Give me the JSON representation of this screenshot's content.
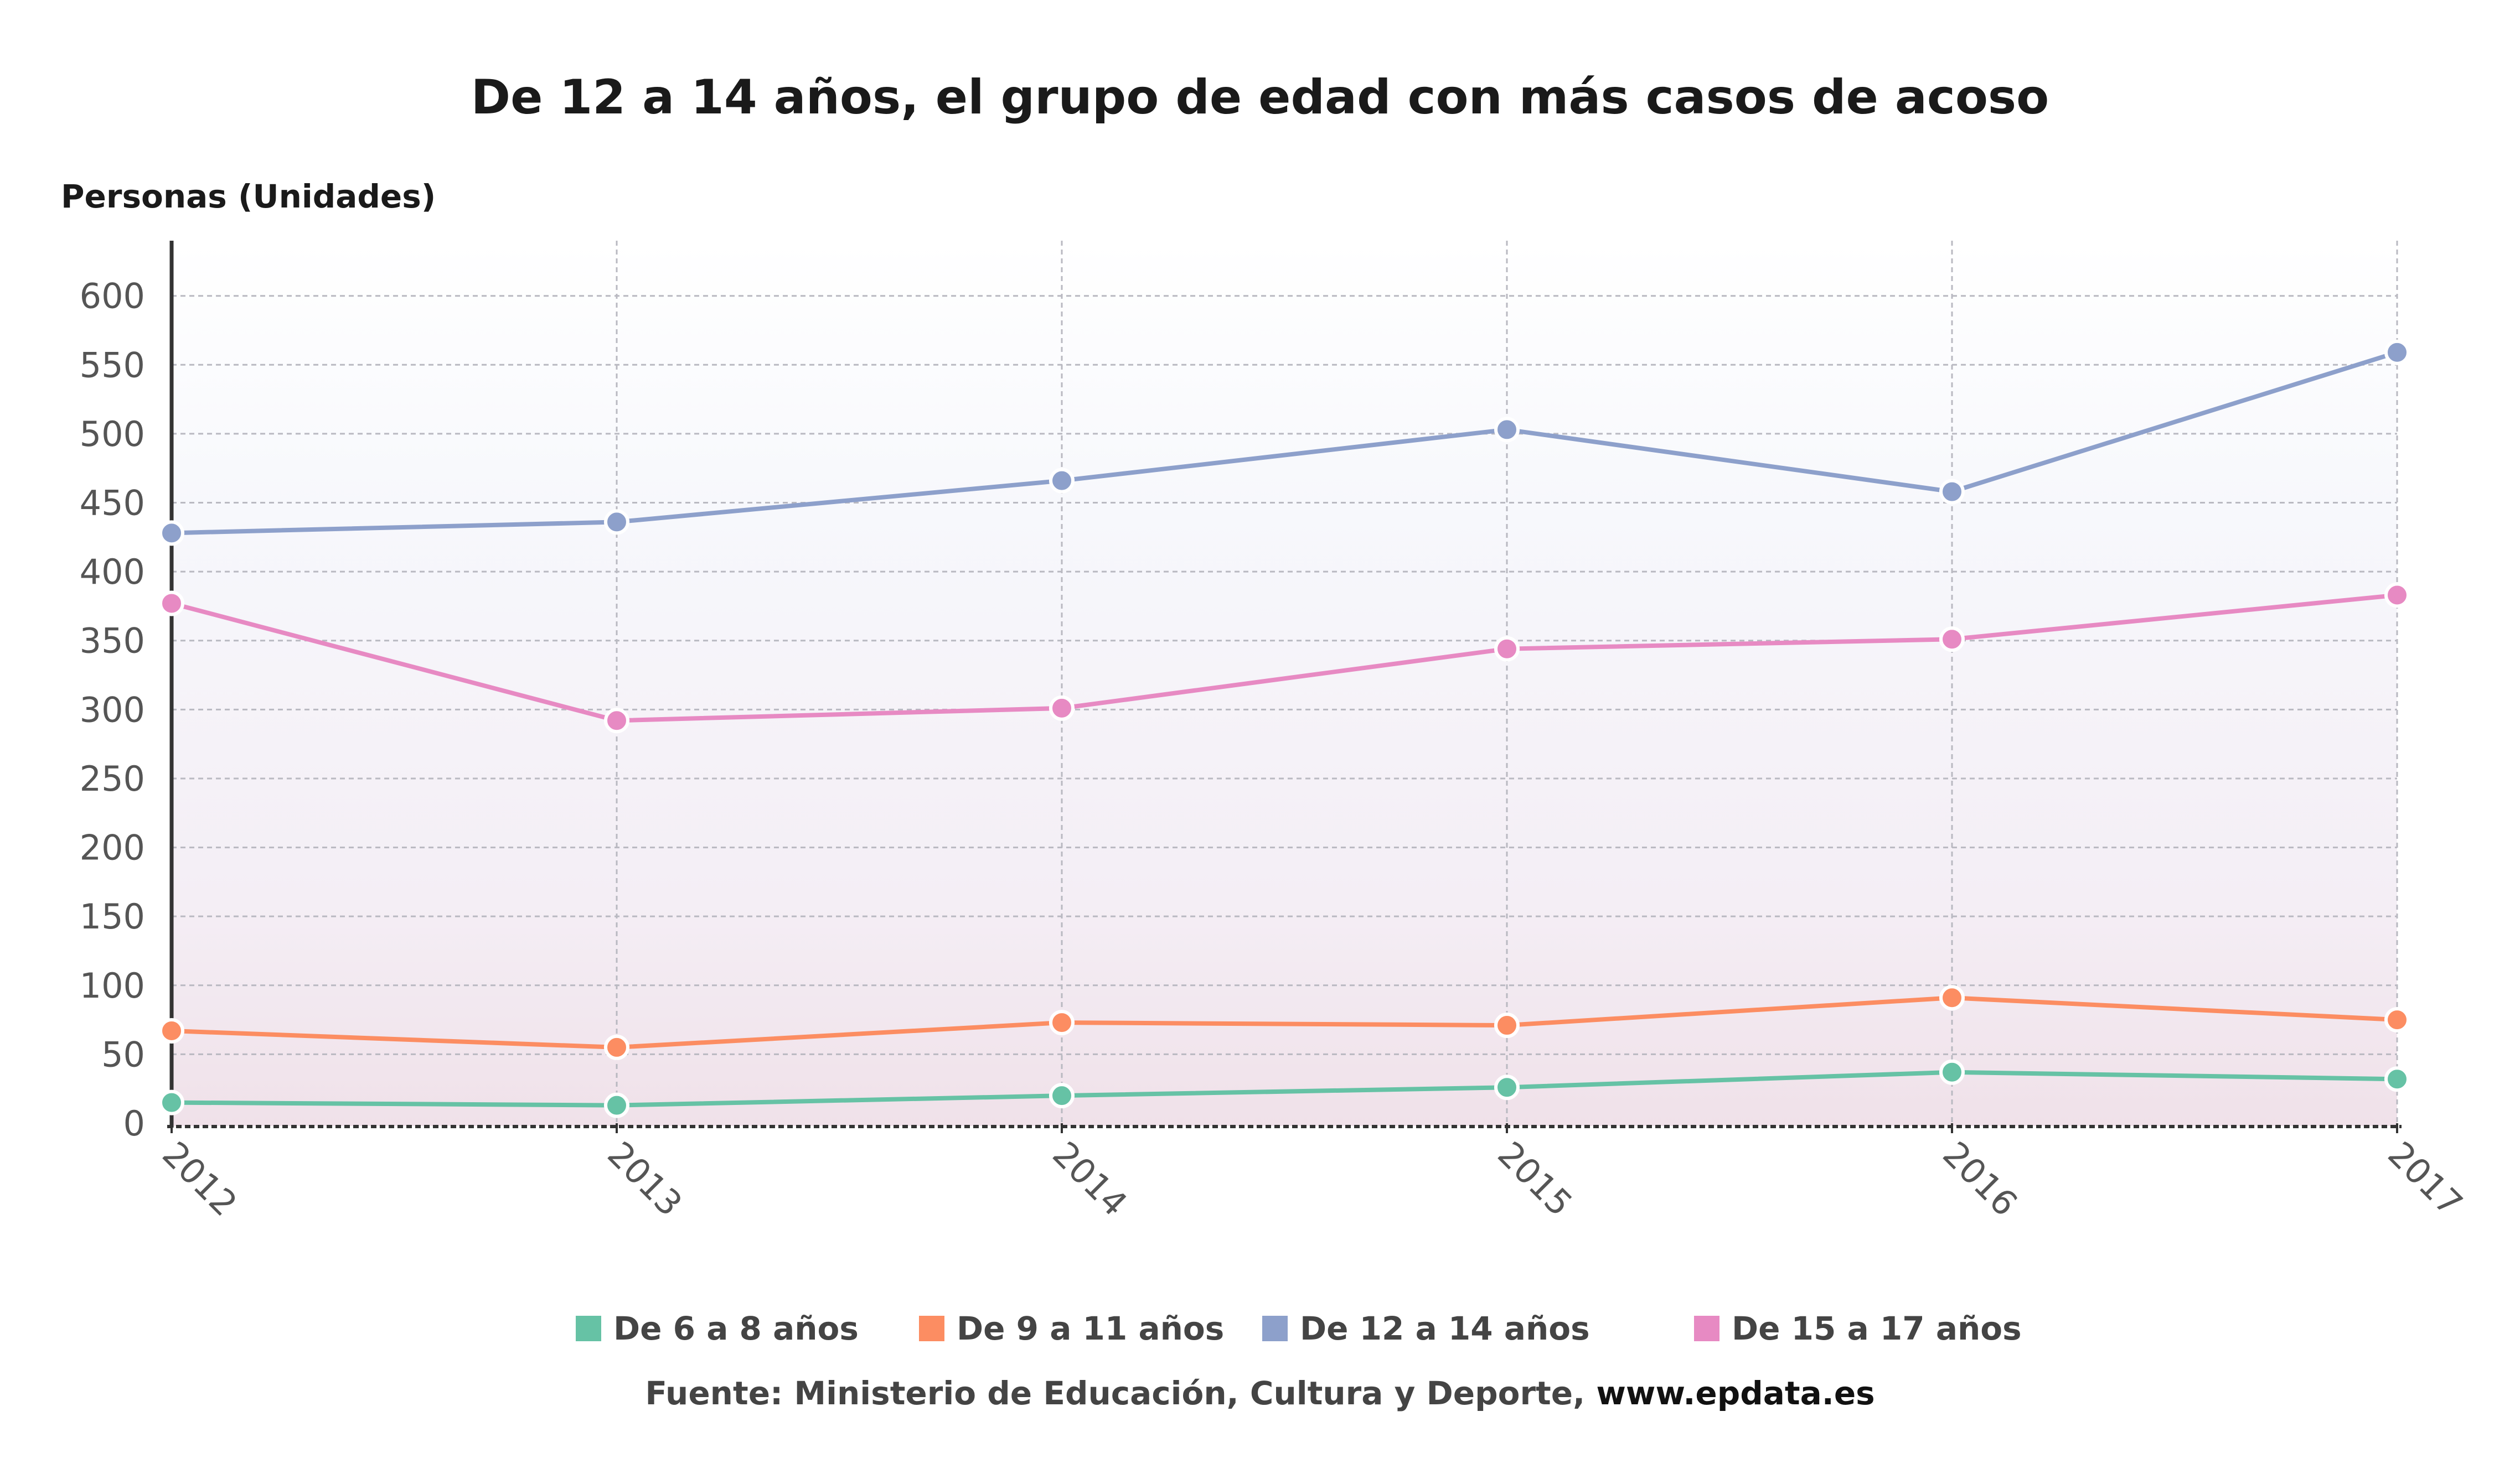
{
  "chart_data": {
    "type": "line",
    "title": "De 12 a 14 años, el grupo de edad con más casos de acoso",
    "ylabel": "Personas (Unidades)",
    "xlabel": "",
    "x": [
      "2012",
      "2013",
      "2014",
      "2015",
      "2016",
      "2017"
    ],
    "ylim": [
      0,
      640
    ],
    "yticks": [
      0,
      50,
      100,
      150,
      200,
      250,
      300,
      350,
      400,
      450,
      500,
      550,
      600
    ],
    "grid": true,
    "legend_position": "bottom",
    "series": [
      {
        "name": "De 6 a 8 años",
        "color": "#66c2a5",
        "values": [
          15,
          13,
          20,
          26,
          37,
          32
        ]
      },
      {
        "name": "De 9 a 11 años",
        "color": "#fc8d62",
        "values": [
          67,
          55,
          73,
          71,
          91,
          75
        ]
      },
      {
        "name": "De 12 a 14 años",
        "color": "#8da0cb",
        "values": [
          428,
          436,
          466,
          503,
          458,
          559
        ]
      },
      {
        "name": "De 15 a 17 años",
        "color": "#e78ac3",
        "values": [
          377,
          292,
          301,
          344,
          351,
          383
        ]
      }
    ]
  },
  "source": {
    "text": "Fuente: Ministerio de Educación, Cultura y Deporte, ",
    "link": "www.epdata.es"
  }
}
